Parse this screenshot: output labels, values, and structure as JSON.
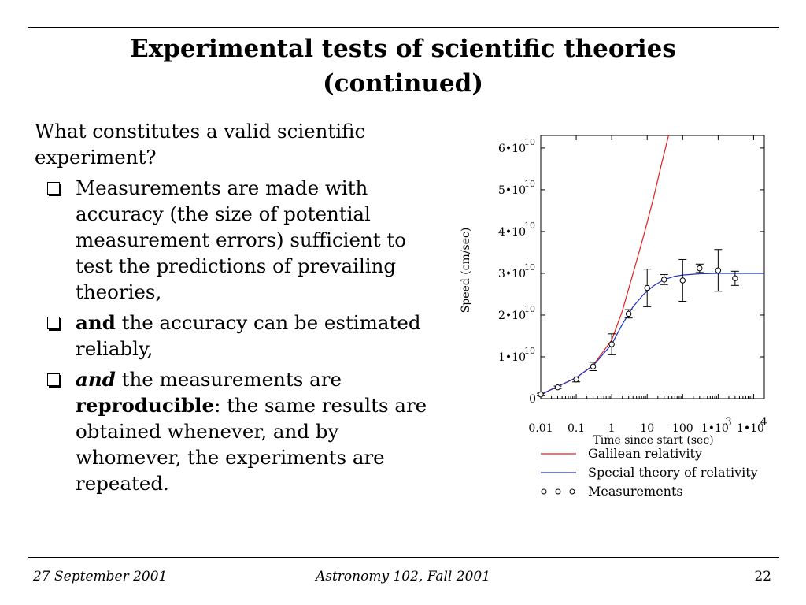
{
  "slide": {
    "title_line1": "Experimental tests of scientific theories",
    "title_line2": "(continued)",
    "intro": "What constitutes a valid scientific experiment?",
    "bullets": [
      {
        "lead": "",
        "lead_style": "none",
        "text": "Measurements are made with accuracy (the size of potential measurement errors) sufficient to test the predictions of prevailing theories,",
        "text2": "",
        "strong": ""
      },
      {
        "lead": "and",
        "lead_style": "bold",
        "text": " the accuracy can be estimated reliably,",
        "text2": "",
        "strong": ""
      },
      {
        "lead": "and",
        "lead_style": "bold-italic",
        "text": " the measurements are ",
        "strong": "reproducible",
        "text2": ": the same results are obtained whenever, and by whomever, the experiments are repeated."
      }
    ]
  },
  "footer": {
    "date": "27 September 2001",
    "course": "Astronomy 102, Fall 2001",
    "page": "22"
  },
  "chart_data": {
    "type": "line",
    "ylabel": "Speed (cm/sec)",
    "xlabel": "Time since start (sec)",
    "x_scale": "log",
    "xlim": [
      0.01,
      20000
    ],
    "ylim": [
      0,
      63000000000.0
    ],
    "x_ticks": [
      {
        "value": 0.01,
        "label": "0.01",
        "exp": ""
      },
      {
        "value": 0.1,
        "label": "0.1",
        "exp": ""
      },
      {
        "value": 1,
        "label": "1",
        "exp": ""
      },
      {
        "value": 10,
        "label": "10",
        "exp": ""
      },
      {
        "value": 100,
        "label": "100",
        "exp": ""
      },
      {
        "value": 1000,
        "label": "1•10",
        "exp": "3"
      },
      {
        "value": 10000,
        "label": "1•10",
        "exp": "4"
      }
    ],
    "y_ticks": [
      {
        "value": 0,
        "label": "0",
        "exp": ""
      },
      {
        "value": 10000000000.0,
        "label": "1•10",
        "exp": "10"
      },
      {
        "value": 20000000000.0,
        "label": "2•10",
        "exp": "10"
      },
      {
        "value": 30000000000.0,
        "label": "3•10",
        "exp": "10"
      },
      {
        "value": 40000000000.0,
        "label": "4•10",
        "exp": "10"
      },
      {
        "value": 50000000000.0,
        "label": "5•10",
        "exp": "10"
      },
      {
        "value": 60000000000.0,
        "label": "6•10",
        "exp": "10"
      }
    ],
    "series": [
      {
        "name": "Galilean relativity",
        "color": "#e02020",
        "style": "line",
        "x": [
          0.01,
          0.03,
          0.1,
          0.3,
          1,
          2,
          4,
          8,
          15,
          25,
          40
        ],
        "y": [
          980000000.0,
          2900000000.0,
          5000000000.0,
          8000000000.0,
          14000000000.0,
          21000000000.0,
          30000000000.0,
          39000000000.0,
          48000000000.0,
          56000000000.0,
          63000000000.0
        ]
      },
      {
        "name": "Special theory of relativity",
        "color": "#2030c0",
        "style": "line",
        "x": [
          0.01,
          0.03,
          0.1,
          0.3,
          1,
          2,
          4,
          8,
          15,
          30,
          60,
          100,
          300,
          1000,
          3000,
          10000,
          20000
        ],
        "y": [
          980000000.0,
          2900000000.0,
          5000000000.0,
          7900000000.0,
          13000000000.0,
          17800000000.0,
          22000000000.0,
          25000000000.0,
          27000000000.0,
          28500000000.0,
          29300000000.0,
          29600000000.0,
          29900000000.0,
          30000000000.0,
          30000000000.0,
          30000000000.0,
          30000000000.0
        ]
      },
      {
        "name": "Measurements",
        "color": "#000000",
        "style": "points",
        "x": [
          0.01,
          0.03,
          0.1,
          0.3,
          1,
          3,
          10,
          30,
          100,
          300,
          1000,
          3000
        ],
        "y": [
          1000000000.0,
          2700000000.0,
          4600000000.0,
          7700000000.0,
          13000000000.0,
          20300000000.0,
          26500000000.0,
          28500000000.0,
          28300000000.0,
          31200000000.0,
          30700000000.0,
          28800000000.0
        ],
        "err": [
          300000000.0,
          300000000.0,
          600000000.0,
          1000000000.0,
          2500000000.0,
          1000000000.0,
          4500000000.0,
          1200000000.0,
          5000000000.0,
          1000000000.0,
          5000000000.0,
          1700000000.0
        ]
      }
    ],
    "legend_position": "bottom"
  }
}
